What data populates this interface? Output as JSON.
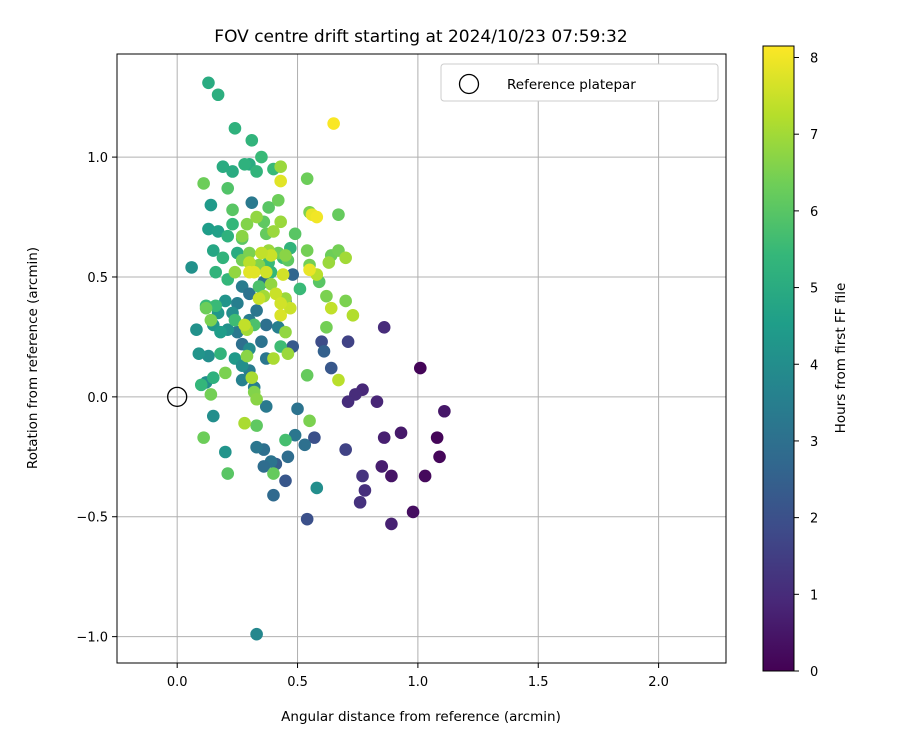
{
  "chart_data": {
    "type": "scatter",
    "title": "FOV centre drift starting at 2024/10/23 07:59:32",
    "xlabel": "Angular distance from reference (arcmin)",
    "ylabel": "Rotation from reference (arcmin)",
    "colorbar_label": "Hours from first FF file",
    "colormap": "viridis",
    "xlim": [
      -0.25,
      2.28
    ],
    "ylim": [
      -1.11,
      1.43
    ],
    "x_ticks": [
      0.0,
      0.5,
      1.0,
      1.5,
      2.0
    ],
    "x_tick_labels": [
      "0.0",
      "0.5",
      "1.0",
      "1.5",
      "2.0"
    ],
    "y_ticks": [
      -1.0,
      -0.5,
      0.0,
      0.5,
      1.0
    ],
    "y_tick_labels": [
      "−1.0",
      "−0.5",
      "0.0",
      "0.5",
      "1.0"
    ],
    "colorbar_range": [
      0,
      8.15
    ],
    "colorbar_ticks": [
      0,
      1,
      2,
      3,
      4,
      5,
      6,
      7,
      8
    ],
    "colorbar_tick_labels": [
      "0",
      "1",
      "2",
      "3",
      "4",
      "5",
      "6",
      "7",
      "8"
    ],
    "grid": true,
    "legend": {
      "position": "top-right",
      "entries": [
        {
          "label": "Reference platepar",
          "marker": "open-circle"
        }
      ]
    },
    "reference_point": {
      "x": 0.0,
      "y": 0.0
    },
    "points": [
      [
        1.01,
        0.12,
        0.1
      ],
      [
        1.08,
        -0.17,
        0.1
      ],
      [
        1.09,
        -0.25,
        0.15
      ],
      [
        1.03,
        -0.33,
        0.2
      ],
      [
        0.98,
        -0.48,
        0.3
      ],
      [
        0.89,
        -0.33,
        0.45
      ],
      [
        0.93,
        -0.15,
        0.55
      ],
      [
        1.11,
        -0.06,
        0.5
      ],
      [
        0.86,
        -0.17,
        0.7
      ],
      [
        0.85,
        -0.29,
        0.65
      ],
      [
        0.89,
        -0.53,
        0.75
      ],
      [
        0.83,
        -0.02,
        0.85
      ],
      [
        0.77,
        0.03,
        0.9
      ],
      [
        0.74,
        0.01,
        1.0
      ],
      [
        0.71,
        -0.02,
        1.05
      ],
      [
        0.78,
        -0.39,
        1.1
      ],
      [
        0.76,
        -0.44,
        1.15
      ],
      [
        0.77,
        -0.33,
        1.2
      ],
      [
        0.86,
        0.29,
        1.0
      ],
      [
        0.7,
        -0.22,
        1.6
      ],
      [
        0.71,
        0.23,
        1.6
      ],
      [
        0.6,
        0.23,
        1.9
      ],
      [
        0.54,
        -0.51,
        2.0
      ],
      [
        0.57,
        -0.17,
        2.0
      ],
      [
        0.45,
        -0.35,
        2.2
      ],
      [
        0.41,
        -0.28,
        2.4
      ],
      [
        0.48,
        0.21,
        2.3
      ],
      [
        0.61,
        0.19,
        2.5
      ],
      [
        0.64,
        0.12,
        2.2
      ],
      [
        0.36,
        -0.22,
        3.0
      ],
      [
        0.39,
        -0.27,
        3.1
      ],
      [
        0.33,
        -0.21,
        3.2
      ],
      [
        0.36,
        -0.29,
        2.9
      ],
      [
        0.4,
        -0.41,
        2.8
      ],
      [
        0.46,
        -0.25,
        2.9
      ],
      [
        0.49,
        -0.16,
        3.2
      ],
      [
        0.53,
        -0.2,
        3.0
      ],
      [
        0.5,
        -0.05,
        3.1
      ],
      [
        0.37,
        -0.04,
        3.3
      ],
      [
        0.32,
        0.04,
        3.5
      ],
      [
        0.27,
        0.07,
        3.6
      ],
      [
        0.3,
        0.11,
        3.4
      ],
      [
        0.37,
        0.16,
        3.2
      ],
      [
        0.35,
        0.23,
        3.1
      ],
      [
        0.27,
        0.22,
        3.0
      ],
      [
        0.25,
        0.27,
        3.3
      ],
      [
        0.3,
        0.32,
        3.4
      ],
      [
        0.33,
        0.36,
        3.2
      ],
      [
        0.37,
        0.3,
        3.0
      ],
      [
        0.42,
        0.29,
        3.5
      ],
      [
        0.45,
        0.4,
        3.3
      ],
      [
        0.25,
        0.39,
        3.5
      ],
      [
        0.27,
        0.46,
        3.4
      ],
      [
        0.3,
        0.43,
        3.1
      ],
      [
        0.36,
        0.48,
        3.0
      ],
      [
        0.31,
        0.81,
        3.3
      ],
      [
        0.48,
        0.51,
        2.7
      ],
      [
        0.33,
        -0.99,
        3.8
      ],
      [
        0.15,
        -0.08,
        4.0
      ],
      [
        0.2,
        -0.23,
        4.2
      ],
      [
        0.58,
        -0.38,
        4.0
      ],
      [
        0.06,
        0.54,
        4.1
      ],
      [
        0.17,
        0.35,
        4.3
      ],
      [
        0.2,
        0.4,
        4.2
      ],
      [
        0.23,
        0.35,
        4.0
      ],
      [
        0.21,
        0.28,
        4.1
      ],
      [
        0.13,
        0.17,
        4.0
      ],
      [
        0.09,
        0.18,
        4.2
      ],
      [
        0.12,
        0.06,
        4.0
      ],
      [
        0.08,
        0.28,
        4.1
      ],
      [
        0.15,
        0.3,
        4.3
      ],
      [
        0.18,
        0.27,
        4.5
      ],
      [
        0.24,
        0.16,
        4.4
      ],
      [
        0.27,
        0.13,
        4.0
      ],
      [
        0.3,
        0.2,
        3.9
      ],
      [
        0.13,
        0.7,
        4.5
      ],
      [
        0.14,
        0.8,
        4.4
      ],
      [
        0.15,
        0.61,
        4.8
      ],
      [
        0.17,
        0.69,
        4.6
      ],
      [
        0.13,
        1.31,
        5.0
      ],
      [
        0.17,
        1.26,
        5.1
      ],
      [
        0.19,
        0.96,
        5.0
      ],
      [
        0.23,
        0.94,
        5.0
      ],
      [
        0.24,
        1.12,
        5.2
      ],
      [
        0.3,
        0.97,
        5.0
      ],
      [
        0.31,
        1.07,
        5.3
      ],
      [
        0.33,
        0.94,
        5.3
      ],
      [
        0.35,
        1.0,
        5.5
      ],
      [
        0.28,
        0.97,
        5.2
      ],
      [
        0.21,
        0.67,
        5.2
      ],
      [
        0.23,
        0.72,
        5.4
      ],
      [
        0.25,
        0.6,
        5.0
      ],
      [
        0.19,
        0.58,
        5.3
      ],
      [
        0.21,
        0.49,
        5.4
      ],
      [
        0.16,
        0.52,
        5.3
      ],
      [
        0.12,
        0.38,
        5.5
      ],
      [
        0.16,
        0.38,
        5.5
      ],
      [
        0.18,
        0.18,
        5.3
      ],
      [
        0.15,
        0.08,
        5.2
      ],
      [
        0.1,
        0.05,
        5.4
      ],
      [
        0.24,
        0.32,
        5.6
      ],
      [
        0.32,
        0.3,
        5.8
      ],
      [
        0.34,
        0.46,
        5.8
      ],
      [
        0.38,
        0.56,
        5.5
      ],
      [
        0.39,
        0.52,
        5.4
      ],
      [
        0.4,
        0.95,
        5.5
      ],
      [
        0.44,
        0.58,
        5.5
      ],
      [
        0.47,
        0.62,
        5.3
      ],
      [
        0.51,
        0.45,
        5.5
      ],
      [
        0.43,
        0.21,
        5.6
      ],
      [
        0.45,
        -0.18,
        5.7
      ],
      [
        0.21,
        -0.32,
        6.0
      ],
      [
        0.33,
        -0.12,
        6.1
      ],
      [
        0.4,
        -0.32,
        6.2
      ],
      [
        0.11,
        -0.17,
        6.3
      ],
      [
        0.21,
        0.87,
        5.9
      ],
      [
        0.23,
        0.78,
        6.0
      ],
      [
        0.27,
        0.66,
        6.0
      ],
      [
        0.36,
        0.73,
        6.1
      ],
      [
        0.38,
        0.79,
        6.0
      ],
      [
        0.42,
        0.82,
        6.3
      ],
      [
        0.37,
        0.68,
        6.2
      ],
      [
        0.42,
        0.6,
        6.3
      ],
      [
        0.46,
        0.57,
        6.1
      ],
      [
        0.49,
        0.68,
        6.0
      ],
      [
        0.54,
        0.61,
        6.4
      ],
      [
        0.55,
        0.55,
        6.4
      ],
      [
        0.54,
        0.91,
        6.3
      ],
      [
        0.55,
        0.77,
        6.5
      ],
      [
        0.59,
        0.48,
        6.0
      ],
      [
        0.64,
        0.59,
        6.3
      ],
      [
        0.67,
        0.61,
        6.4
      ],
      [
        0.62,
        0.42,
        6.5
      ],
      [
        0.7,
        0.4,
        6.5
      ],
      [
        0.67,
        0.76,
        6.2
      ],
      [
        0.62,
        0.29,
        6.4
      ],
      [
        0.54,
        0.09,
        6.2
      ],
      [
        0.55,
        -0.1,
        6.5
      ],
      [
        0.11,
        0.89,
        6.3
      ],
      [
        0.12,
        0.37,
        6.3
      ],
      [
        0.14,
        0.32,
        6.5
      ],
      [
        0.14,
        0.01,
        6.4
      ],
      [
        0.2,
        0.1,
        6.5
      ],
      [
        0.27,
        0.57,
        6.4
      ],
      [
        0.3,
        0.6,
        6.5
      ],
      [
        0.34,
        0.55,
        6.6
      ],
      [
        0.32,
        0.02,
        6.6
      ],
      [
        0.33,
        -0.01,
        6.7
      ],
      [
        0.29,
        0.17,
        6.7
      ],
      [
        0.24,
        0.52,
        6.8
      ],
      [
        0.27,
        0.67,
        6.7
      ],
      [
        0.29,
        0.72,
        6.6
      ],
      [
        0.33,
        0.75,
        6.8
      ],
      [
        0.43,
        0.73,
        6.9
      ],
      [
        0.45,
        0.59,
        6.7
      ],
      [
        0.45,
        0.41,
        6.9
      ],
      [
        0.45,
        0.27,
        6.8
      ],
      [
        0.46,
        0.18,
        6.9
      ],
      [
        0.43,
        0.96,
        6.9
      ],
      [
        0.4,
        0.69,
        6.9
      ],
      [
        0.38,
        0.61,
        6.9
      ],
      [
        0.39,
        0.47,
        6.8
      ],
      [
        0.36,
        0.42,
        7.0
      ],
      [
        0.29,
        0.28,
        7.0
      ],
      [
        0.31,
        0.08,
        7.1
      ],
      [
        0.28,
        -0.11,
        7.1
      ],
      [
        0.4,
        0.16,
        7.1
      ],
      [
        0.63,
        0.56,
        6.9
      ],
      [
        0.67,
        0.07,
        7.3
      ],
      [
        0.7,
        0.58,
        7.0
      ],
      [
        0.73,
        0.34,
        7.2
      ],
      [
        0.64,
        0.37,
        7.4
      ],
      [
        0.58,
        0.51,
        7.3
      ],
      [
        0.28,
        0.3,
        7.4
      ],
      [
        0.34,
        0.41,
        7.5
      ],
      [
        0.3,
        0.56,
        7.3
      ],
      [
        0.39,
        0.59,
        7.5
      ],
      [
        0.43,
        0.34,
        7.7
      ],
      [
        0.47,
        0.37,
        7.5
      ],
      [
        0.44,
        0.51,
        7.6
      ],
      [
        0.41,
        0.43,
        7.5
      ],
      [
        0.43,
        0.9,
        7.8
      ],
      [
        0.32,
        0.52,
        7.8
      ],
      [
        0.55,
        0.53,
        7.9
      ],
      [
        0.56,
        0.76,
        7.9
      ],
      [
        0.58,
        0.75,
        8.0
      ],
      [
        0.65,
        1.14,
        8.1
      ],
      [
        0.43,
        0.39,
        7.6
      ],
      [
        0.37,
        0.52,
        7.6
      ],
      [
        0.35,
        0.6,
        7.4
      ],
      [
        0.3,
        0.52,
        7.8
      ]
    ]
  }
}
